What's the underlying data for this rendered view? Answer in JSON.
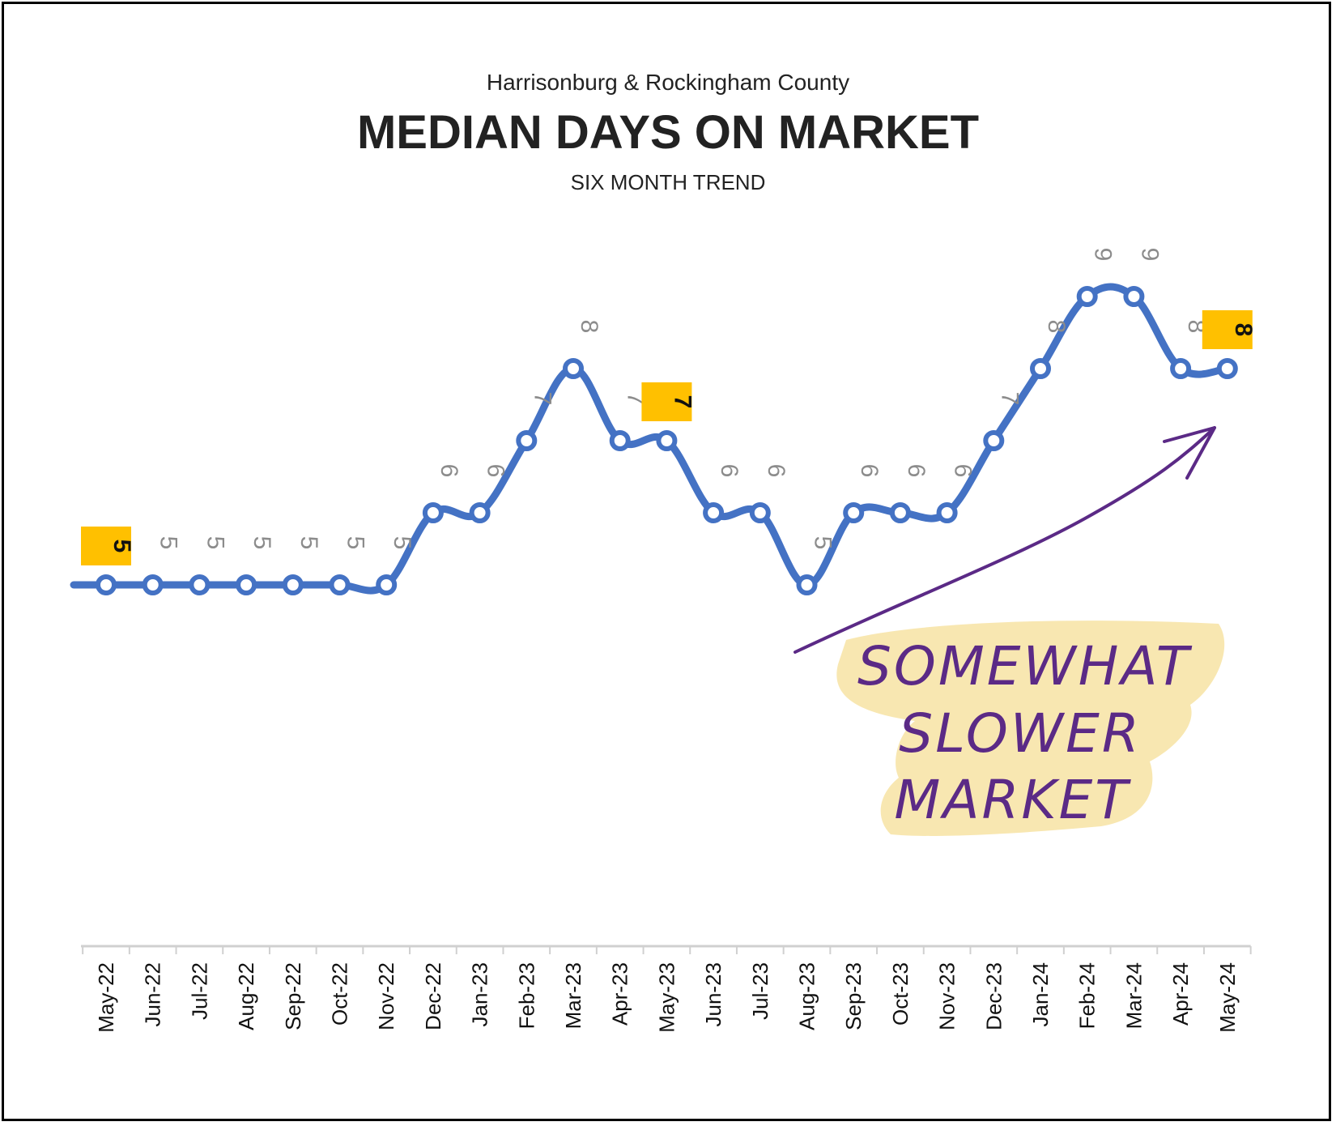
{
  "chart_data": {
    "type": "line",
    "supertitle": "Harrisonburg & Rockingham County",
    "title": "MEDIAN DAYS ON MARKET",
    "subtitle": "SIX MONTH TREND",
    "xlabel": "",
    "ylabel": "",
    "grid": false,
    "legend": "none",
    "categories": [
      "May-22",
      "Jun-22",
      "Jul-22",
      "Aug-22",
      "Sep-22",
      "Oct-22",
      "Nov-22",
      "Dec-22",
      "Jan-23",
      "Feb-23",
      "Mar-23",
      "Apr-23",
      "May-23",
      "Jun-23",
      "Jul-23",
      "Aug-23",
      "Sep-23",
      "Oct-23",
      "Nov-23",
      "Dec-23",
      "Jan-24",
      "Feb-24",
      "Mar-24",
      "Apr-24",
      "May-24"
    ],
    "series": [
      {
        "values": [
          5,
          5,
          5,
          5,
          5,
          5,
          5,
          6,
          6,
          7,
          8,
          7,
          7,
          6,
          6,
          5,
          6,
          6,
          6,
          7,
          8,
          9,
          9,
          8,
          8
        ]
      }
    ],
    "highlighted_labels": [
      {
        "category": "May-22",
        "value": 5
      },
      {
        "category": "May-23",
        "value": 7
      },
      {
        "category": "May-24",
        "value": 8
      }
    ],
    "annotation": {
      "lines": [
        "SOMEWHAT",
        "SLOWER",
        "MARKET"
      ]
    },
    "colors": {
      "line": "#4472C4",
      "label": "#8c8c8c",
      "highlight": "#FFC000",
      "annotation_text": "#5B2A86",
      "annotation_bg": "#F7E3A3",
      "axis": "#d0d0d0"
    }
  }
}
